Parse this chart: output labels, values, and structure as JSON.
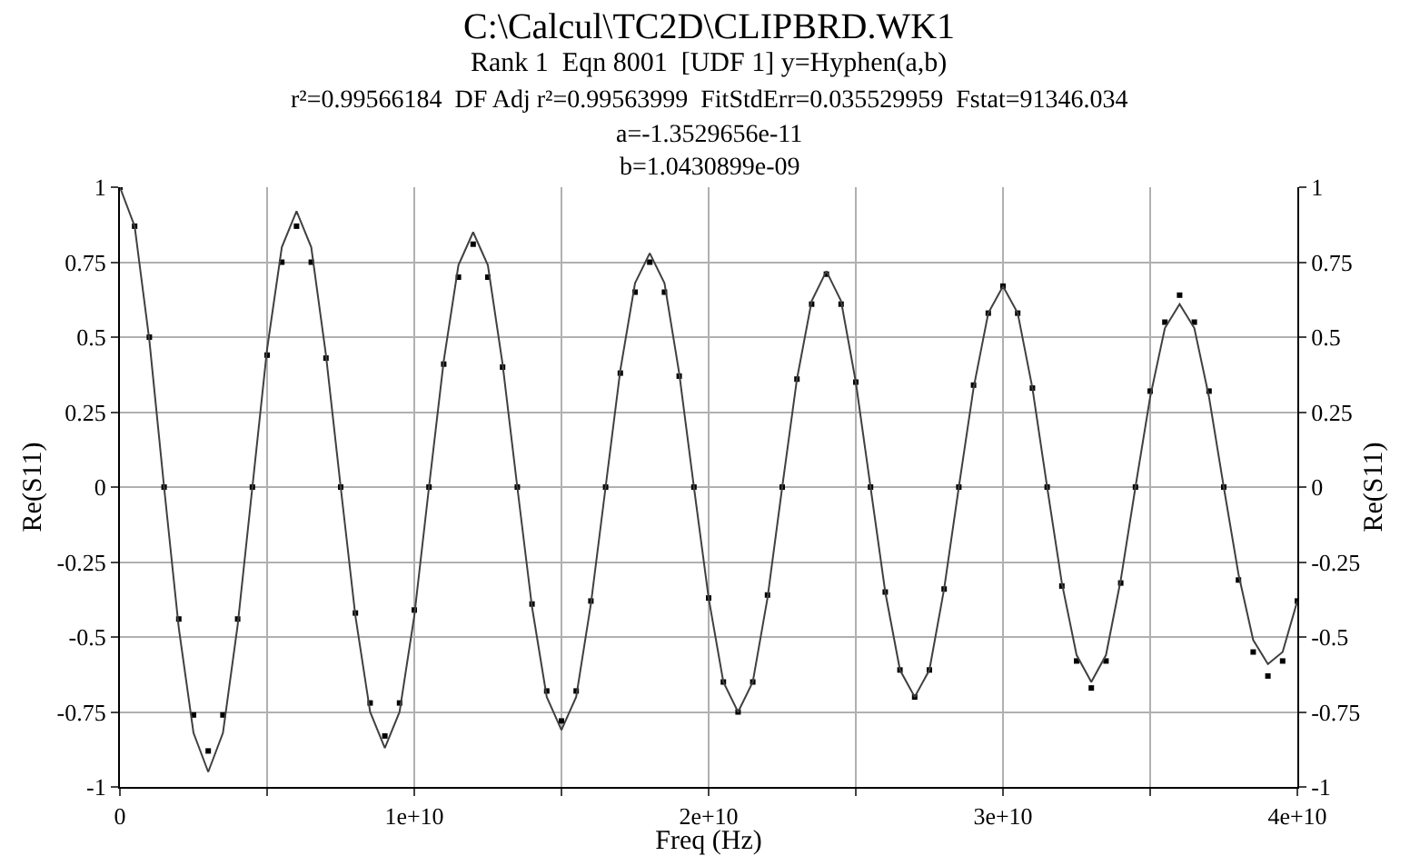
{
  "chart_data": {
    "type": "scatter",
    "title": "C:\\Calcul\\TC2D\\CLIPBRD.WK1",
    "subtitle": "Rank 1  Eqn 8001  [UDF 1] y=Hyphen(a,b)",
    "annotations": [
      "r²=0.99566184  DF Adj r²=0.99563999  FitStdErr=0.035529959  Fstat=91346.034",
      "a=-1.3529656e-11",
      "b=1.0430899e-09"
    ],
    "xlabel": "Freq (Hz)",
    "ylabel": "Re(S11)",
    "y2label": "Re(S11)",
    "x": [
      0,
      500000000.0,
      1000000000.0,
      1500000000.0,
      2000000000.0,
      2500000000.0,
      3000000000.0,
      3500000000.0,
      4000000000.0,
      4500000000.0,
      5000000000.0,
      5500000000.0,
      6000000000.0,
      6500000000.0,
      7000000000.0,
      7500000000.0,
      8000000000.0,
      8500000000.0,
      9000000000.0,
      9500000000.0,
      10000000000.0,
      10500000000.0,
      11000000000.0,
      11500000000.0,
      12000000000.0,
      12500000000.0,
      13000000000.0,
      13500000000.0,
      14000000000.0,
      14500000000.0,
      15000000000.0,
      15500000000.0,
      16000000000.0,
      16500000000.0,
      17000000000.0,
      17500000000.0,
      18000000000.0,
      18500000000.0,
      19000000000.0,
      19500000000.0,
      20000000000.0,
      20500000000.0,
      21000000000.0,
      21500000000.0,
      22000000000.0,
      22500000000.0,
      23000000000.0,
      23500000000.0,
      24000000000.0,
      24500000000.0,
      25000000000.0,
      25500000000.0,
      26000000000.0,
      26500000000.0,
      27000000000.0,
      27500000000.0,
      28000000000.0,
      28500000000.0,
      29000000000.0,
      29500000000.0,
      30000000000.0,
      30500000000.0,
      31000000000.0,
      31500000000.0,
      32000000000.0,
      32500000000.0,
      33000000000.0,
      33500000000.0,
      34000000000.0,
      34500000000.0,
      35000000000.0,
      35500000000.0,
      36000000000.0,
      36500000000.0,
      37000000000.0,
      37500000000.0,
      38000000000.0,
      38500000000.0,
      39000000000.0,
      39500000000.0,
      40000000000.0
    ],
    "series": [
      {
        "color": "#000000",
        "marker": "square",
        "values": [
          1,
          0.87,
          0.5,
          0.0,
          -0.44,
          -0.76,
          -0.88,
          -0.76,
          -0.44,
          0.0,
          0.44,
          0.75,
          0.87,
          0.75,
          0.43,
          0.0,
          -0.42,
          -0.72,
          -0.83,
          -0.72,
          -0.41,
          0.0,
          0.41,
          0.7,
          0.81,
          0.7,
          0.4,
          0.0,
          -0.39,
          -0.68,
          -0.78,
          -0.68,
          -0.38,
          0.0,
          0.38,
          0.65,
          0.75,
          0.65,
          0.37,
          0.0,
          -0.37,
          -0.65,
          -0.75,
          -0.65,
          -0.36,
          0.0,
          0.36,
          0.61,
          0.71,
          0.61,
          0.35,
          0.0,
          -0.35,
          -0.61,
          -0.7,
          -0.61,
          -0.34,
          0.0,
          0.34,
          0.58,
          0.67,
          0.58,
          0.33,
          0.0,
          -0.33,
          -0.58,
          -0.67,
          -0.58,
          -0.32,
          0.0,
          0.32,
          0.55,
          0.64,
          0.55,
          0.32,
          0.0,
          -0.31,
          -0.55,
          -0.63,
          -0.58,
          -0.38
        ]
      },
      {
        "type": "line",
        "color": "#404040",
        "line_style": "solid",
        "values": [
          1,
          0.87,
          0.49,
          0.0,
          -0.47,
          -0.82,
          -0.95,
          -0.82,
          -0.46,
          0.0,
          0.46,
          0.8,
          0.92,
          0.8,
          0.44,
          0.0,
          -0.43,
          -0.75,
          -0.87,
          -0.75,
          -0.43,
          0.0,
          0.42,
          0.74,
          0.85,
          0.74,
          0.41,
          0.0,
          -0.4,
          -0.7,
          -0.81,
          -0.7,
          -0.39,
          0.0,
          0.39,
          0.68,
          0.78,
          0.68,
          0.38,
          0.0,
          -0.37,
          -0.65,
          -0.75,
          -0.65,
          -0.37,
          0.0,
          0.36,
          0.62,
          0.72,
          0.62,
          0.35,
          0.0,
          -0.35,
          -0.61,
          -0.7,
          -0.61,
          -0.34,
          0.0,
          0.33,
          0.58,
          0.67,
          0.58,
          0.33,
          0.0,
          -0.32,
          -0.56,
          -0.65,
          -0.56,
          -0.31,
          0.0,
          0.3,
          0.53,
          0.61,
          0.53,
          0.3,
          0.0,
          -0.29,
          -0.51,
          -0.59,
          -0.55,
          -0.38
        ]
      }
    ],
    "xlim": [
      0,
      40000000000.0
    ],
    "xticks": [
      0,
      {
        "value": 5000000000.0,
        "label": null
      },
      {
        "value": 10000000000.0,
        "label": "1e+10"
      },
      {
        "value": 15000000000.0,
        "label": null
      },
      {
        "value": 20000000000.0,
        "label": "2e+10"
      },
      {
        "value": 25000000000.0,
        "label": null
      },
      {
        "value": 30000000000.0,
        "label": "3e+10"
      },
      {
        "value": 35000000000.0,
        "label": null
      },
      {
        "value": 40000000000.0,
        "label": "4e+10"
      }
    ],
    "ylim": [
      -1,
      1
    ],
    "yticks": [
      -1,
      -0.75,
      -0.5,
      -0.25,
      0,
      0.25,
      0.5,
      0.75,
      1
    ],
    "y2lim": [
      -1,
      1
    ],
    "y2ticks": [
      -1,
      -0.75,
      -0.5,
      -0.25,
      0,
      0.25,
      0.5,
      0.75,
      1
    ],
    "grid": true,
    "legend": false
  }
}
